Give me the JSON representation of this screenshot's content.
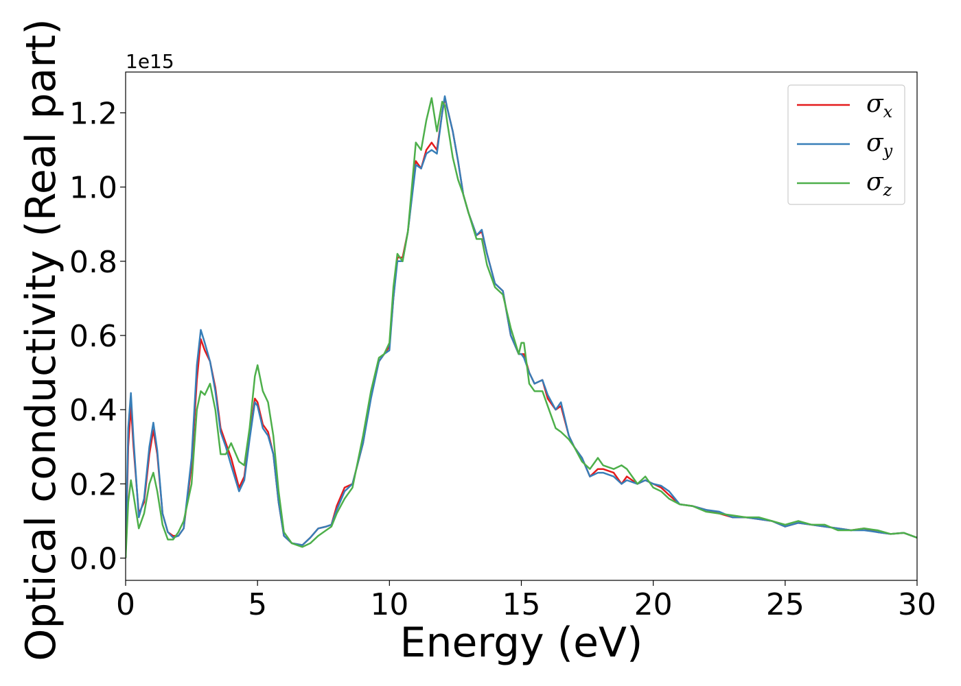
{
  "chart_data": {
    "type": "line",
    "xlabel": "Energy (eV)",
    "ylabel": "Optical conductivity (Real part)",
    "y_offset_label": "1e15",
    "xlim": [
      0,
      30
    ],
    "ylim": [
      -0.06,
      1.31
    ],
    "xticks": [
      0,
      5,
      10,
      15,
      20,
      25,
      30
    ],
    "yticks": [
      0.0,
      0.2,
      0.4,
      0.6,
      0.8,
      1.0,
      1.2
    ],
    "xtick_labels": [
      "0",
      "5",
      "10",
      "15",
      "20",
      "25",
      "30"
    ],
    "ytick_labels": [
      "0.0",
      "0.2",
      "0.4",
      "0.6",
      "0.8",
      "1.0",
      "1.2"
    ],
    "grid": false,
    "legend_position": "top-right",
    "series": [
      {
        "name": "σ_x",
        "legend_base": "σ",
        "legend_sub": "x",
        "color": "#e41a1c",
        "x": [
          0,
          0.1,
          0.2,
          0.3,
          0.5,
          0.7,
          0.9,
          1.05,
          1.2,
          1.4,
          1.6,
          1.8,
          2.0,
          2.2,
          2.5,
          2.7,
          2.85,
          3.0,
          3.2,
          3.4,
          3.6,
          3.8,
          4.0,
          4.3,
          4.5,
          4.7,
          4.9,
          5.0,
          5.2,
          5.4,
          5.6,
          5.8,
          6.0,
          6.3,
          6.7,
          7.0,
          7.3,
          7.6,
          7.8,
          8.0,
          8.3,
          8.6,
          9.0,
          9.3,
          9.6,
          9.8,
          10.0,
          10.15,
          10.3,
          10.5,
          10.7,
          11.0,
          11.2,
          11.4,
          11.6,
          11.8,
          12.0,
          12.1,
          12.2,
          12.4,
          12.6,
          12.8,
          13.0,
          13.3,
          13.5,
          13.7,
          14.0,
          14.3,
          14.6,
          14.9,
          15.0,
          15.1,
          15.3,
          15.5,
          15.8,
          16.0,
          16.3,
          16.5,
          16.8,
          17.0,
          17.3,
          17.6,
          17.9,
          18.1,
          18.5,
          18.8,
          19.0,
          19.4,
          19.7,
          20.0,
          20.3,
          20.6,
          21.0,
          21.5,
          22.0,
          22.5,
          23.0,
          23.5,
          24.0,
          24.5,
          25.0,
          25.5,
          26.0,
          26.5,
          27.0,
          27.5,
          28.0,
          28.5,
          29.0,
          29.5,
          30.0
        ],
        "y": [
          0.0,
          0.3,
          0.41,
          0.3,
          0.12,
          0.15,
          0.28,
          0.345,
          0.28,
          0.12,
          0.07,
          0.06,
          0.06,
          0.08,
          0.25,
          0.48,
          0.59,
          0.56,
          0.53,
          0.46,
          0.35,
          0.31,
          0.27,
          0.19,
          0.22,
          0.33,
          0.43,
          0.42,
          0.36,
          0.34,
          0.28,
          0.15,
          0.06,
          0.04,
          0.035,
          0.055,
          0.08,
          0.085,
          0.09,
          0.14,
          0.19,
          0.2,
          0.31,
          0.44,
          0.53,
          0.55,
          0.57,
          0.7,
          0.81,
          0.81,
          0.88,
          1.07,
          1.05,
          1.1,
          1.12,
          1.1,
          1.2,
          1.24,
          1.21,
          1.15,
          1.07,
          0.98,
          0.93,
          0.87,
          0.88,
          0.82,
          0.74,
          0.72,
          0.6,
          0.55,
          0.55,
          0.55,
          0.5,
          0.47,
          0.48,
          0.43,
          0.4,
          0.41,
          0.33,
          0.3,
          0.27,
          0.22,
          0.24,
          0.24,
          0.23,
          0.2,
          0.22,
          0.2,
          0.21,
          0.2,
          0.19,
          0.17,
          0.145,
          0.14,
          0.13,
          0.12,
          0.11,
          0.11,
          0.105,
          0.1,
          0.085,
          0.095,
          0.09,
          0.085,
          0.08,
          0.075,
          0.08,
          0.07,
          0.065,
          0.068,
          0.055
        ]
      },
      {
        "name": "σ_y",
        "legend_base": "σ",
        "legend_sub": "y",
        "color": "#377eb8",
        "x": [
          0,
          0.1,
          0.2,
          0.3,
          0.5,
          0.7,
          0.9,
          1.05,
          1.2,
          1.4,
          1.6,
          1.8,
          2.0,
          2.2,
          2.5,
          2.7,
          2.85,
          3.0,
          3.2,
          3.4,
          3.6,
          3.8,
          4.0,
          4.3,
          4.5,
          4.7,
          4.9,
          5.0,
          5.2,
          5.4,
          5.6,
          5.8,
          6.0,
          6.3,
          6.7,
          7.0,
          7.3,
          7.6,
          7.8,
          8.0,
          8.3,
          8.6,
          9.0,
          9.3,
          9.6,
          9.8,
          10.0,
          10.15,
          10.3,
          10.5,
          10.7,
          11.0,
          11.2,
          11.4,
          11.6,
          11.8,
          12.0,
          12.1,
          12.2,
          12.4,
          12.6,
          12.8,
          13.0,
          13.3,
          13.5,
          13.7,
          14.0,
          14.3,
          14.6,
          14.9,
          15.0,
          15.1,
          15.3,
          15.5,
          15.8,
          16.0,
          16.3,
          16.5,
          16.8,
          17.0,
          17.3,
          17.6,
          17.9,
          18.1,
          18.5,
          18.8,
          19.0,
          19.4,
          19.7,
          20.0,
          20.3,
          20.6,
          21.0,
          21.5,
          22.0,
          22.5,
          23.0,
          23.5,
          24.0,
          24.5,
          25.0,
          25.5,
          26.0,
          26.5,
          27.0,
          27.5,
          28.0,
          28.5,
          29.0,
          29.5,
          30.0
        ],
        "y": [
          0.0,
          0.35,
          0.445,
          0.32,
          0.11,
          0.16,
          0.3,
          0.365,
          0.29,
          0.12,
          0.07,
          0.055,
          0.06,
          0.08,
          0.27,
          0.52,
          0.615,
          0.58,
          0.53,
          0.45,
          0.34,
          0.3,
          0.25,
          0.18,
          0.21,
          0.32,
          0.42,
          0.41,
          0.35,
          0.33,
          0.28,
          0.15,
          0.06,
          0.04,
          0.035,
          0.055,
          0.08,
          0.085,
          0.09,
          0.13,
          0.18,
          0.2,
          0.31,
          0.43,
          0.53,
          0.55,
          0.56,
          0.7,
          0.8,
          0.8,
          0.88,
          1.06,
          1.05,
          1.09,
          1.1,
          1.09,
          1.2,
          1.245,
          1.21,
          1.15,
          1.07,
          0.98,
          0.93,
          0.87,
          0.885,
          0.82,
          0.74,
          0.72,
          0.6,
          0.55,
          0.55,
          0.54,
          0.5,
          0.47,
          0.48,
          0.44,
          0.4,
          0.42,
          0.33,
          0.3,
          0.27,
          0.22,
          0.23,
          0.23,
          0.22,
          0.2,
          0.21,
          0.2,
          0.21,
          0.2,
          0.195,
          0.18,
          0.145,
          0.14,
          0.13,
          0.125,
          0.11,
          0.11,
          0.105,
          0.1,
          0.085,
          0.095,
          0.09,
          0.085,
          0.08,
          0.075,
          0.075,
          0.07,
          0.065,
          0.068,
          0.055
        ]
      },
      {
        "name": "σ_z",
        "legend_base": "σ",
        "legend_sub": "z",
        "color": "#4daf4a",
        "x": [
          0,
          0.1,
          0.2,
          0.3,
          0.5,
          0.7,
          0.9,
          1.05,
          1.2,
          1.4,
          1.6,
          1.8,
          2.0,
          2.2,
          2.5,
          2.7,
          2.85,
          3.0,
          3.2,
          3.4,
          3.6,
          3.8,
          4.0,
          4.3,
          4.5,
          4.7,
          4.9,
          5.0,
          5.2,
          5.4,
          5.6,
          5.8,
          6.0,
          6.3,
          6.7,
          7.0,
          7.3,
          7.6,
          7.8,
          8.0,
          8.3,
          8.6,
          9.0,
          9.3,
          9.6,
          9.8,
          10.0,
          10.15,
          10.3,
          10.5,
          10.7,
          11.0,
          11.2,
          11.4,
          11.6,
          11.8,
          12.0,
          12.1,
          12.2,
          12.4,
          12.6,
          12.8,
          13.0,
          13.3,
          13.5,
          13.7,
          14.0,
          14.3,
          14.6,
          14.9,
          15.0,
          15.1,
          15.3,
          15.5,
          15.8,
          16.0,
          16.3,
          16.5,
          16.8,
          17.0,
          17.3,
          17.6,
          17.9,
          18.1,
          18.5,
          18.8,
          19.0,
          19.4,
          19.7,
          20.0,
          20.3,
          20.6,
          21.0,
          21.5,
          22.0,
          22.5,
          23.0,
          23.5,
          24.0,
          24.5,
          25.0,
          25.5,
          26.0,
          26.5,
          27.0,
          27.5,
          28.0,
          28.5,
          29.0,
          29.5,
          30.0
        ],
        "y": [
          0.0,
          0.15,
          0.21,
          0.17,
          0.08,
          0.12,
          0.2,
          0.23,
          0.18,
          0.09,
          0.05,
          0.05,
          0.07,
          0.1,
          0.2,
          0.4,
          0.45,
          0.44,
          0.47,
          0.4,
          0.28,
          0.28,
          0.31,
          0.26,
          0.25,
          0.35,
          0.49,
          0.52,
          0.45,
          0.42,
          0.33,
          0.18,
          0.07,
          0.04,
          0.03,
          0.04,
          0.06,
          0.075,
          0.085,
          0.12,
          0.16,
          0.19,
          0.33,
          0.45,
          0.54,
          0.55,
          0.58,
          0.73,
          0.82,
          0.8,
          0.88,
          1.12,
          1.1,
          1.18,
          1.24,
          1.15,
          1.23,
          1.22,
          1.17,
          1.08,
          1.02,
          0.98,
          0.93,
          0.86,
          0.86,
          0.79,
          0.73,
          0.71,
          0.62,
          0.55,
          0.58,
          0.58,
          0.47,
          0.45,
          0.45,
          0.41,
          0.35,
          0.34,
          0.32,
          0.3,
          0.26,
          0.24,
          0.27,
          0.25,
          0.24,
          0.25,
          0.24,
          0.2,
          0.22,
          0.19,
          0.18,
          0.16,
          0.145,
          0.14,
          0.125,
          0.12,
          0.115,
          0.11,
          0.11,
          0.1,
          0.09,
          0.1,
          0.09,
          0.09,
          0.075,
          0.075,
          0.08,
          0.075,
          0.065,
          0.068,
          0.055
        ]
      }
    ]
  }
}
